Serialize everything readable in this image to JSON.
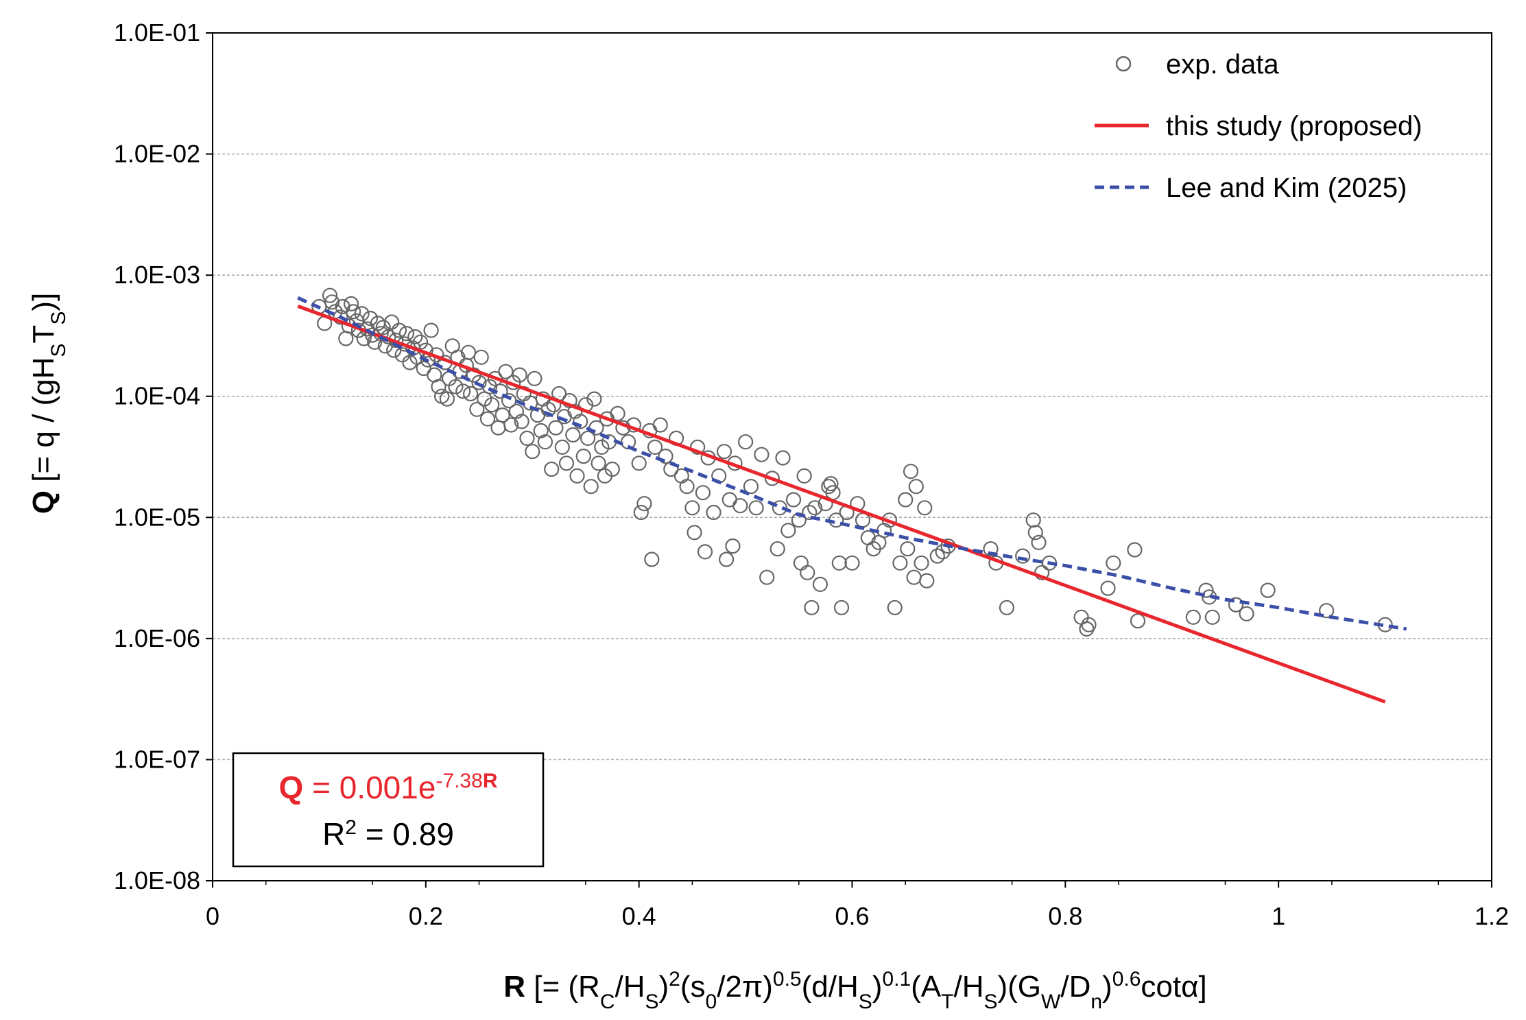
{
  "chart_data": {
    "type": "scatter",
    "title": "",
    "xlabel": {
      "bold_symbol": "R",
      "rest": " [= (R_C/H_S)^2(s_0/2π)^0.5(d/H_S)^0.1(A_T/H_S)(G_W/D_n)^0.6cotα]"
    },
    "ylabel": {
      "bold_symbol": "Q",
      "rest": " [= q / (gH_ST_S)]"
    },
    "x_range": [
      0,
      1.2
    ],
    "y_range": [
      1e-08,
      0.1
    ],
    "y_scale": "log",
    "grid": "horizontal dashed",
    "x_ticks": [
      "0",
      "0.2",
      "0.4",
      "0.6",
      "0.8",
      "1",
      "1.2"
    ],
    "y_ticks": [
      "1.0E-08",
      "1.0E-07",
      "1.0E-06",
      "1.0E-05",
      "1.0E-04",
      "1.0E-03",
      "1.0E-02",
      "1.0E-01"
    ],
    "legend_position": "top-right",
    "legend": [
      {
        "label": "exp. data",
        "style": "open-circle",
        "color": "#666666"
      },
      {
        "label": "this study (proposed)",
        "style": "solid",
        "color": "#e8262d"
      },
      {
        "label": "Lee and Kim (2025)",
        "style": "dashed",
        "color": "#3b4fa8"
      }
    ],
    "annotation": {
      "equation_symbol": "Q",
      "equation_body": " = 0.001e",
      "equation_exponent_num": "-7.38",
      "equation_exponent_sym": "R",
      "r2_prefix": "R",
      "r2_sup": "2",
      "r2_value": " = 0.89",
      "color": "#e8262d"
    },
    "series": [
      {
        "name": "this study (proposed)",
        "type": "line",
        "color": "#e8262d",
        "x": [
          0.08,
          1.1
        ],
        "y": [
          0.000554,
          3e-07
        ]
      },
      {
        "name": "Lee and Kim (2025)",
        "type": "line",
        "dash": true,
        "color": "#3b4fa8",
        "x": [
          0.08,
          0.12,
          0.16,
          0.2,
          0.25,
          0.3,
          0.35,
          0.4,
          0.45,
          0.5,
          0.55,
          0.6,
          0.65,
          0.7,
          0.75,
          0.8,
          0.85,
          0.9,
          0.95,
          1.0,
          1.05,
          1.12
        ],
        "y": [
          0.00065,
          0.00045,
          0.0003,
          0.0002,
          0.000125,
          8e-05,
          5.5e-05,
          3.5e-05,
          2.4e-05,
          1.6e-05,
          1.05e-05,
          8.5e-06,
          6.8e-06,
          5.6e-06,
          4.7e-06,
          4e-06,
          3.3e-06,
          2.6e-06,
          2.1e-06,
          1.8e-06,
          1.5e-06,
          1.2e-06
        ]
      },
      {
        "name": "exp. data",
        "type": "scatter",
        "color": "#666666",
        "points": [
          [
            0.1,
            0.00055
          ],
          [
            0.105,
            0.0004
          ],
          [
            0.11,
            0.00068
          ],
          [
            0.112,
            0.0006
          ],
          [
            0.115,
            0.0005
          ],
          [
            0.12,
            0.00045
          ],
          [
            0.122,
            0.00055
          ],
          [
            0.125,
            0.0003
          ],
          [
            0.128,
            0.00038
          ],
          [
            0.13,
            0.00058
          ],
          [
            0.132,
            0.0005
          ],
          [
            0.135,
            0.00042
          ],
          [
            0.137,
            0.00035
          ],
          [
            0.14,
            0.00048
          ],
          [
            0.142,
            0.0003
          ],
          [
            0.145,
            0.00036
          ],
          [
            0.148,
            0.00044
          ],
          [
            0.15,
            0.00032
          ],
          [
            0.152,
            0.00028
          ],
          [
            0.155,
            0.0004
          ],
          [
            0.158,
            0.00033
          ],
          [
            0.16,
            0.00037
          ],
          [
            0.162,
            0.00026
          ],
          [
            0.165,
            0.00031
          ],
          [
            0.168,
            0.00041
          ],
          [
            0.17,
            0.00024
          ],
          [
            0.172,
            0.00029
          ],
          [
            0.175,
            0.00035
          ],
          [
            0.178,
            0.00022
          ],
          [
            0.18,
            0.00027
          ],
          [
            0.182,
            0.00033
          ],
          [
            0.185,
            0.00019
          ],
          [
            0.188,
            0.00025
          ],
          [
            0.19,
            0.00031
          ],
          [
            0.192,
            0.00021
          ],
          [
            0.195,
            0.00028
          ],
          [
            0.198,
            0.00017
          ],
          [
            0.2,
            0.00024
          ],
          [
            0.202,
            0.0002
          ],
          [
            0.205,
            0.00035
          ],
          [
            0.208,
            0.00015
          ],
          [
            0.21,
            0.00022
          ],
          [
            0.212,
            0.00012
          ],
          [
            0.215,
            0.0001
          ],
          [
            0.218,
            0.00019
          ],
          [
            0.22,
            9.5e-05
          ],
          [
            0.222,
            0.00014
          ],
          [
            0.225,
            0.00026
          ],
          [
            0.228,
            0.00012
          ],
          [
            0.23,
            0.00021
          ],
          [
            0.232,
            0.00016
          ],
          [
            0.235,
            0.00011
          ],
          [
            0.238,
            0.00018
          ],
          [
            0.24,
            0.00023
          ],
          [
            0.242,
            0.000105
          ],
          [
            0.245,
            0.00015
          ],
          [
            0.248,
            7.8e-05
          ],
          [
            0.25,
            0.00013
          ],
          [
            0.252,
            0.00021
          ],
          [
            0.255,
            9.5e-05
          ],
          [
            0.258,
            6.5e-05
          ],
          [
            0.26,
            0.00012
          ],
          [
            0.262,
            8.5e-05
          ],
          [
            0.265,
            0.00014
          ],
          [
            0.268,
            5.5e-05
          ],
          [
            0.27,
            0.00011
          ],
          [
            0.272,
            7e-05
          ],
          [
            0.275,
            0.00016
          ],
          [
            0.278,
            9.2e-05
          ],
          [
            0.28,
            5.8e-05
          ],
          [
            0.282,
            0.00013
          ],
          [
            0.285,
            7.5e-05
          ],
          [
            0.288,
            0.00015
          ],
          [
            0.29,
            6.2e-05
          ],
          [
            0.292,
            0.000105
          ],
          [
            0.295,
            4.5e-05
          ],
          [
            0.298,
            8.8e-05
          ],
          [
            0.3,
            3.5e-05
          ],
          [
            0.302,
            0.00014
          ],
          [
            0.305,
            7e-05
          ],
          [
            0.308,
            5.2e-05
          ],
          [
            0.31,
            9.5e-05
          ],
          [
            0.312,
            4.2e-05
          ],
          [
            0.315,
            7.8e-05
          ],
          [
            0.318,
            2.5e-05
          ],
          [
            0.32,
            8.5e-05
          ],
          [
            0.322,
            5.5e-05
          ],
          [
            0.325,
            0.000105
          ],
          [
            0.328,
            3.8e-05
          ],
          [
            0.33,
            6.8e-05
          ],
          [
            0.332,
            2.8e-05
          ],
          [
            0.335,
            9.2e-05
          ],
          [
            0.338,
            4.8e-05
          ],
          [
            0.34,
            7.5e-05
          ],
          [
            0.342,
            2.2e-05
          ],
          [
            0.345,
            6.2e-05
          ],
          [
            0.348,
            3.2e-05
          ],
          [
            0.35,
            8.5e-05
          ],
          [
            0.352,
            4.5e-05
          ],
          [
            0.355,
            1.8e-05
          ],
          [
            0.358,
            9.5e-05
          ],
          [
            0.36,
            5.5e-05
          ],
          [
            0.362,
            2.8e-05
          ],
          [
            0.365,
            3.8e-05
          ],
          [
            0.368,
            2.2e-05
          ],
          [
            0.37,
            6.5e-05
          ],
          [
            0.372,
            4.2e-05
          ],
          [
            0.375,
            2.5e-05
          ],
          [
            0.38,
            7.2e-05
          ],
          [
            0.385,
            5.5e-05
          ],
          [
            0.39,
            4.2e-05
          ],
          [
            0.395,
            5.8e-05
          ],
          [
            0.4,
            2.8e-05
          ],
          [
            0.402,
            1.1e-05
          ],
          [
            0.405,
            1.3e-05
          ],
          [
            0.41,
            5.2e-05
          ],
          [
            0.412,
            4.5e-06
          ],
          [
            0.415,
            3.8e-05
          ],
          [
            0.42,
            5.8e-05
          ],
          [
            0.425,
            3.2e-05
          ],
          [
            0.43,
            2.5e-05
          ],
          [
            0.435,
            4.5e-05
          ],
          [
            0.44,
            2.2e-05
          ],
          [
            0.445,
            1.8e-05
          ],
          [
            0.45,
            1.2e-05
          ],
          [
            0.452,
            7.5e-06
          ],
          [
            0.455,
            3.8e-05
          ],
          [
            0.46,
            1.6e-05
          ],
          [
            0.462,
            5.2e-06
          ],
          [
            0.465,
            3.1e-05
          ],
          [
            0.47,
            1.1e-05
          ],
          [
            0.475,
            2.2e-05
          ],
          [
            0.48,
            3.5e-05
          ],
          [
            0.482,
            4.5e-06
          ],
          [
            0.485,
            1.4e-05
          ],
          [
            0.488,
            5.8e-06
          ],
          [
            0.49,
            2.8e-05
          ],
          [
            0.495,
            1.25e-05
          ],
          [
            0.5,
            4.2e-05
          ],
          [
            0.505,
            1.8e-05
          ],
          [
            0.51,
            1.2e-05
          ],
          [
            0.515,
            3.3e-05
          ],
          [
            0.52,
            3.2e-06
          ],
          [
            0.525,
            2.1e-05
          ],
          [
            0.53,
            5.5e-06
          ],
          [
            0.532,
            1.2e-05
          ],
          [
            0.535,
            3.1e-05
          ],
          [
            0.54,
            7.8e-06
          ],
          [
            0.545,
            1.4e-05
          ],
          [
            0.55,
            9.5e-06
          ],
          [
            0.552,
            4.2e-06
          ],
          [
            0.555,
            2.2e-05
          ],
          [
            0.558,
            3.5e-06
          ],
          [
            0.56,
            1.1e-05
          ],
          [
            0.562,
            1.8e-06
          ],
          [
            0.565,
            1.2e-05
          ],
          [
            0.57,
            2.8e-06
          ],
          [
            0.575,
            1.3e-05
          ],
          [
            0.578,
            1.8e-05
          ],
          [
            0.58,
            1.9e-05
          ],
          [
            0.582,
            1.6e-05
          ],
          [
            0.585,
            9.5e-06
          ],
          [
            0.588,
            4.2e-06
          ],
          [
            0.59,
            1.8e-06
          ],
          [
            0.595,
            1.1e-05
          ],
          [
            0.6,
            4.2e-06
          ],
          [
            0.605,
            1.3e-05
          ],
          [
            0.61,
            9.5e-06
          ],
          [
            0.615,
            6.8e-06
          ],
          [
            0.62,
            5.5e-06
          ],
          [
            0.625,
            6.2e-06
          ],
          [
            0.63,
            7.8e-06
          ],
          [
            0.635,
            9.5e-06
          ],
          [
            0.64,
            1.8e-06
          ],
          [
            0.645,
            4.2e-06
          ],
          [
            0.65,
            1.4e-05
          ],
          [
            0.652,
            5.5e-06
          ],
          [
            0.655,
            2.4e-05
          ],
          [
            0.658,
            3.2e-06
          ],
          [
            0.66,
            1.8e-05
          ],
          [
            0.665,
            4.2e-06
          ],
          [
            0.668,
            1.2e-05
          ],
          [
            0.67,
            3e-06
          ],
          [
            0.68,
            4.8e-06
          ],
          [
            0.685,
            5.2e-06
          ],
          [
            0.69,
            5.8e-06
          ],
          [
            0.73,
            5.5e-06
          ],
          [
            0.735,
            4.2e-06
          ],
          [
            0.745,
            1.8e-06
          ],
          [
            0.76,
            4.8e-06
          ],
          [
            0.77,
            9.5e-06
          ],
          [
            0.772,
            7.5e-06
          ],
          [
            0.775,
            6.2e-06
          ],
          [
            0.778,
            3.5e-06
          ],
          [
            0.785,
            4.2e-06
          ],
          [
            0.815,
            1.5e-06
          ],
          [
            0.82,
            1.2e-06
          ],
          [
            0.822,
            1.3e-06
          ],
          [
            0.84,
            2.6e-06
          ],
          [
            0.845,
            4.2e-06
          ],
          [
            0.865,
            5.4e-06
          ],
          [
            0.868,
            1.4e-06
          ],
          [
            0.92,
            1.5e-06
          ],
          [
            0.932,
            2.5e-06
          ],
          [
            0.935,
            2.2e-06
          ],
          [
            0.938,
            1.5e-06
          ],
          [
            0.96,
            1.9e-06
          ],
          [
            0.97,
            1.6e-06
          ],
          [
            0.99,
            2.5e-06
          ],
          [
            1.045,
            1.7e-06
          ],
          [
            1.1,
            1.3e-06
          ]
        ]
      }
    ]
  }
}
